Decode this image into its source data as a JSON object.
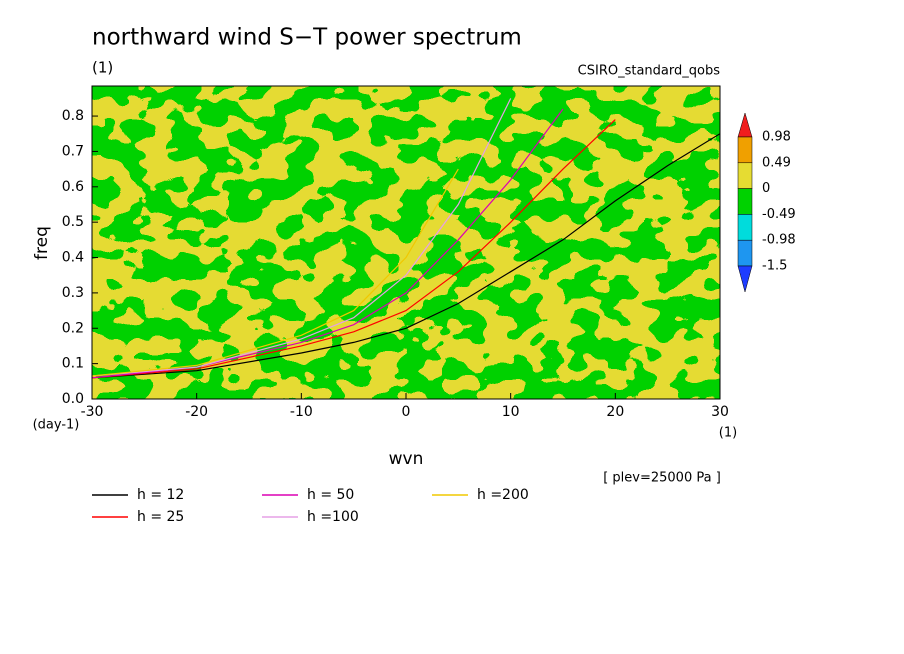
{
  "chart_data": {
    "type": "line",
    "title": "northward wind S−T power spectrum",
    "subtitle": "(1)",
    "source": "CSIRO_standard_qobs",
    "xlabel": "wvn",
    "xunit": "(1)",
    "ylabel": "freq",
    "yunit": "(day-1)",
    "note": "[ plev=25000 Pa ]",
    "field_colors": [
      "#e6dc32",
      "#00d200"
    ],
    "xlim": [
      -30,
      30
    ],
    "ylim": [
      0,
      0.885
    ],
    "xticks": [
      -30,
      -20,
      -10,
      0,
      10,
      20,
      30
    ],
    "yticks": [
      {
        "value": 0,
        "label": "0.0"
      },
      0.1,
      0.2,
      0.3,
      0.4,
      0.5,
      0.6,
      0.7,
      0.8
    ],
    "x": [
      -30,
      -20,
      -10,
      -5,
      0,
      5,
      10,
      15,
      20,
      25,
      30
    ],
    "series": [
      {
        "name": "h = 12",
        "color": "#000000",
        "values": [
          0.06,
          0.08,
          0.13,
          0.16,
          0.2,
          0.27,
          0.36,
          0.45,
          0.56,
          0.66,
          0.75
        ]
      },
      {
        "name": "h = 25",
        "color": "#ff0000",
        "values": [
          0.06,
          0.085,
          0.15,
          0.19,
          0.25,
          0.36,
          0.5,
          0.65,
          0.79,
          null,
          null
        ]
      },
      {
        "name": "h = 50",
        "color": "#dc00b4",
        "values": [
          0.06,
          0.09,
          0.16,
          0.21,
          0.3,
          0.45,
          0.62,
          0.82,
          null,
          null,
          null
        ]
      },
      {
        "name": "h =100",
        "color": "#e6a0e6",
        "values": [
          0.065,
          0.09,
          0.17,
          0.23,
          0.35,
          0.55,
          0.85,
          null,
          null,
          null,
          null
        ]
      },
      {
        "name": "h =200",
        "color": "#f0c800",
        "values": [
          0.065,
          0.095,
          0.18,
          0.25,
          0.4,
          0.65,
          null,
          null,
          null,
          null,
          null
        ]
      }
    ],
    "colorbar": {
      "levels": [
        0.98,
        0.49,
        0,
        -0.49,
        -0.98,
        -1.5
      ],
      "colors": [
        "#f01e1e",
        "#f0a000",
        "#e6dc32",
        "#00d200",
        "#00dcdc",
        "#1e96f0",
        "#1e3cff"
      ]
    }
  }
}
